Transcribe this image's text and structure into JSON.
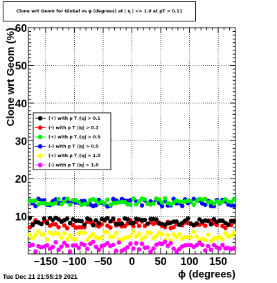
{
  "chart_data": {
    "type": "scatter",
    "title": "Clone wrt Geom for Global vs φ (degrees) at | η | <= 1.0 at pT > 0.11",
    "xlabel": "ϕ (degrees)",
    "ylabel": "Clone wrt Geom (%)",
    "xlim": [
      -180,
      180
    ],
    "ylim": [
      0,
      60
    ],
    "x_ticks": [
      -150,
      -100,
      -50,
      0,
      50,
      100,
      150
    ],
    "y_ticks": [
      10,
      20,
      30,
      40,
      50,
      60
    ],
    "grid": true,
    "legend_position": "center-left",
    "series": [
      {
        "name": "(+) with p T /|q| > 0.1",
        "color": "#000000",
        "band": [
          7.6,
          9.6
        ]
      },
      {
        "name": "(-) with p T /|q| > 0.1",
        "color": "#ff0000",
        "band": [
          6.8,
          9.0
        ]
      },
      {
        "name": "(+) with p T /|q| > 0.5",
        "color": "#00ee00",
        "band": [
          13.0,
          14.8
        ]
      },
      {
        "name": "(-) with p T /|q| > 0.5",
        "color": "#0000ff",
        "band": [
          12.6,
          14.6
        ]
      },
      {
        "name": "(+) with p T /|q| > 1.0",
        "color": "#ffff00",
        "band": [
          3.4,
          6.0
        ]
      },
      {
        "name": "(-) with p T /|q| > 1.0",
        "color": "#ff00ff",
        "band": [
          0.6,
          3.2
        ]
      }
    ]
  },
  "footer": {
    "timestamp": "Tue Dec 21 21:55:19 2021"
  }
}
